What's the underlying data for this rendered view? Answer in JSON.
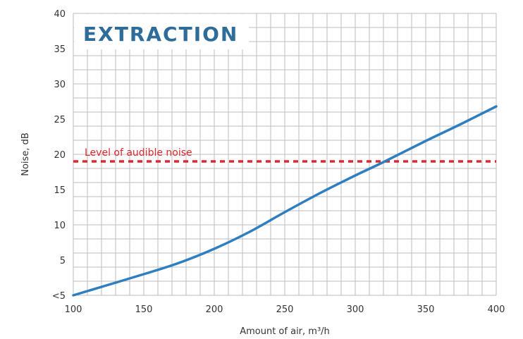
{
  "chart_data": {
    "type": "line",
    "title": "EXTRACTION",
    "xlabel": "Amount of air, m³/h",
    "ylabel": "Noise, dB",
    "xlim": [
      100,
      400
    ],
    "ylim": [
      0,
      40
    ],
    "x_ticks": [
      "100",
      "150",
      "200",
      "250",
      "300",
      "350",
      "400"
    ],
    "y_ticks": [
      "<5",
      "5",
      "10",
      "15",
      "20",
      "25",
      "30",
      "35",
      "40"
    ],
    "grid": true,
    "series": [
      {
        "x": [
          100,
          150,
          175,
          200,
          225,
          250,
          275,
          300,
          320,
          350,
          375,
          400
        ],
        "y": [
          0,
          3,
          4.6,
          6.6,
          9,
          11.8,
          14.5,
          17,
          18.9,
          21.9,
          24.3,
          26.8
        ],
        "color": "#2f7fc0"
      }
    ],
    "reference_line": {
      "label": "Level of audible noise",
      "y": 19,
      "color": "#e0262e",
      "style": "dashed"
    },
    "colors": {
      "title": "#2e6d99",
      "grid": "#bdbdbd",
      "axis_text": "#333333"
    }
  }
}
